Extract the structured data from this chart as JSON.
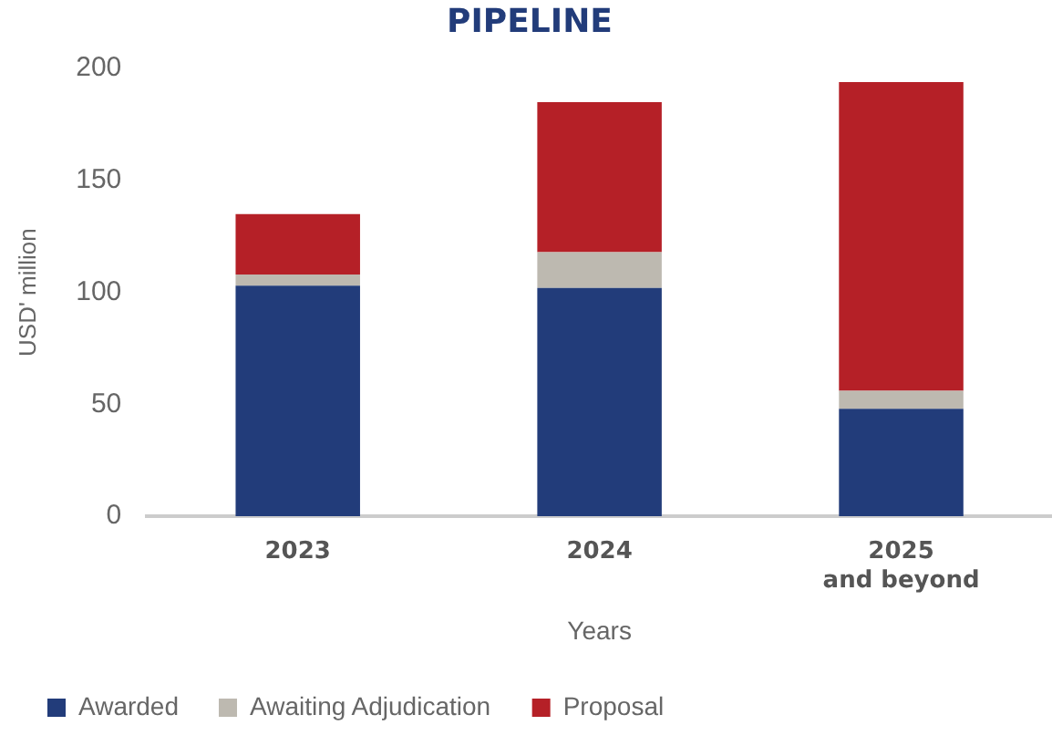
{
  "chart_data": {
    "type": "bar",
    "title": "PIPELINE",
    "xlabel": "Years",
    "ylabel": "USD' million",
    "categories": [
      "2023",
      "2024",
      "2025\nand beyond"
    ],
    "series": [
      {
        "name": "Awarded",
        "color": "#223c7a",
        "values": [
          103,
          102,
          48
        ]
      },
      {
        "name": "Awaiting Adjudication",
        "color": "#bdb9b0",
        "values": [
          5,
          16,
          8
        ]
      },
      {
        "name": "Proposal",
        "color": "#b52027",
        "values": [
          27,
          67,
          138
        ]
      }
    ],
    "stacked": true,
    "ylim": [
      0,
      200
    ],
    "yticks": [
      0,
      50,
      100,
      150,
      200
    ],
    "grid": false,
    "legend": "bottom"
  }
}
